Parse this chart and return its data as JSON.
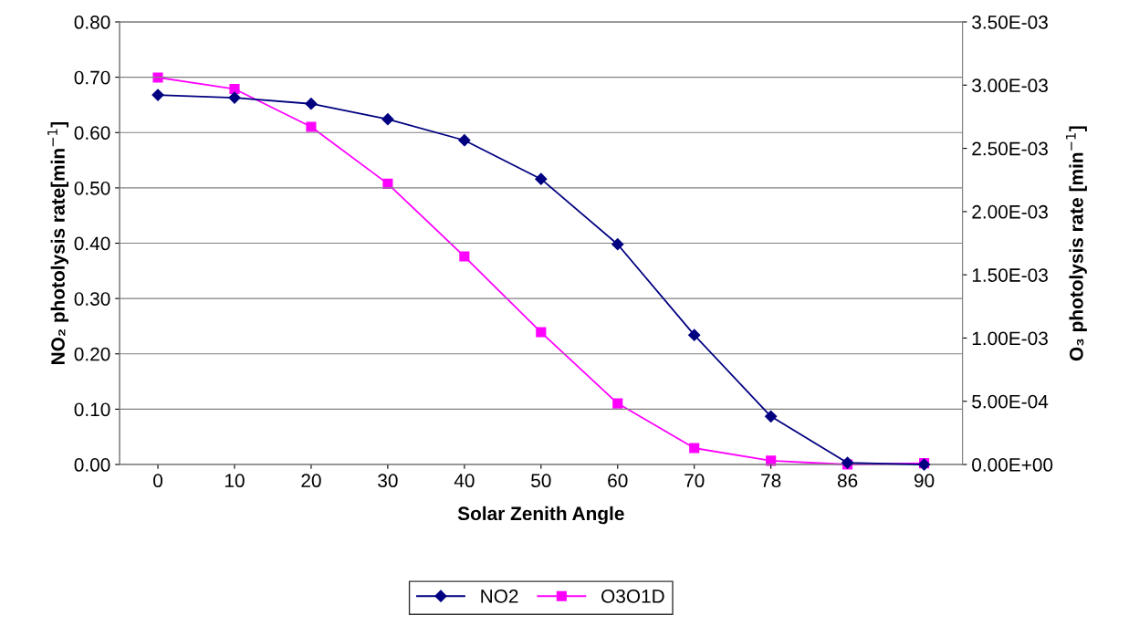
{
  "chart_data": {
    "type": "line",
    "xlabel": "Solar Zenith Angle",
    "ylabel": "NO₂ photolysis rate[min$^{−1}$]",
    "y2label": "O₃ photolysis rate [min$^{−1}$]",
    "categories": [
      "0",
      "10",
      "20",
      "30",
      "40",
      "50",
      "60",
      "70",
      "78",
      "86",
      "90"
    ],
    "series": [
      {
        "name": "NO2",
        "color": "#000080",
        "marker": "diamond",
        "values": [
          0.668,
          0.663,
          0.652,
          0.624,
          0.586,
          0.516,
          0.398,
          0.234,
          0.087,
          0.003,
          0.0
        ]
      },
      {
        "name": "O3O1D",
        "color": "#ff00ff",
        "marker": "square",
        "axis": "y2",
        "values": [
          0.00306,
          0.00297,
          0.00267,
          0.00222,
          0.001645,
          0.001046,
          0.000483,
          0.00013,
          3e-05,
          0.0,
          1e-05
        ]
      }
    ],
    "ylim": [
      0,
      0.8
    ],
    "yticks": [
      {
        "value": 0,
        "label": "0.00"
      },
      {
        "value": 0.1,
        "label": "0.10"
      },
      {
        "value": 0.2,
        "label": "0.20"
      },
      {
        "value": 0.3,
        "label": "0.30"
      },
      {
        "value": 0.4,
        "label": "0.40"
      },
      {
        "value": 0.5,
        "label": "0.50"
      },
      {
        "value": 0.6,
        "label": "0.60"
      },
      {
        "value": 0.7,
        "label": "0.70"
      },
      {
        "value": 0.8,
        "label": "0.80"
      }
    ],
    "y2lim": [
      0,
      0.0035
    ],
    "y2ticks": [
      {
        "value": 0,
        "label": "0.00E+00"
      },
      {
        "value": 0.0005,
        "label": "5.00E-04"
      },
      {
        "value": 0.001,
        "label": "1.00E-03"
      },
      {
        "value": 0.0015,
        "label": "1.50E-03"
      },
      {
        "value": 0.002,
        "label": "2.00E-03"
      },
      {
        "value": 0.0025,
        "label": "2.50E-03"
      },
      {
        "value": 0.003,
        "label": "3.00E-03"
      },
      {
        "value": 0.0035,
        "label": "3.50E-03"
      }
    ],
    "grid": "y",
    "legend": "bottom",
    "line_style": "solid"
  }
}
